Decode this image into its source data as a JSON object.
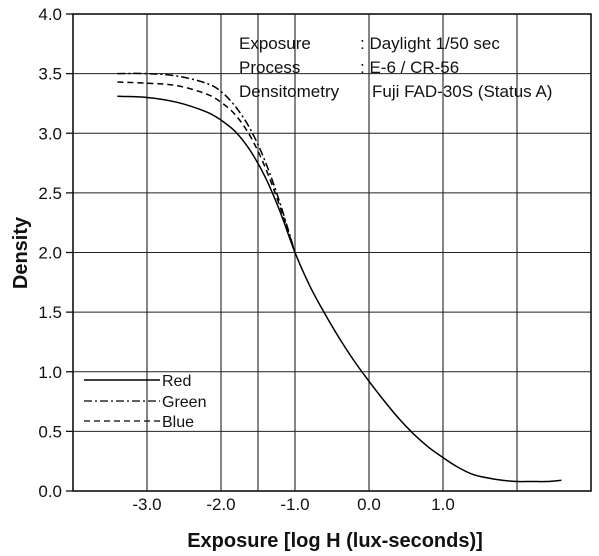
{
  "chart_data": {
    "type": "line",
    "xlabel": "Exposure [log H (lux-seconds)]",
    "ylabel": "Density",
    "xlim": [
      -4.0,
      3.0
    ],
    "ylim": [
      0.0,
      4.0
    ],
    "x_ticks": [
      -3.0,
      -2.0,
      -1.0,
      0.0,
      1.0
    ],
    "x_tick_labels": [
      "-3.0",
      "-2.0",
      "-1.0",
      "0.0",
      "1.0"
    ],
    "x_gridlines": [
      -3.0,
      -2.0,
      -1.5,
      -1.0,
      0.0,
      1.0,
      2.0
    ],
    "y_ticks": [
      0.0,
      0.5,
      1.0,
      1.5,
      2.0,
      2.5,
      3.0,
      3.5,
      4.0
    ],
    "y_tick_labels": [
      "0.0",
      "0.5",
      "1.0",
      "1.5",
      "2.0",
      "2.5",
      "3.0",
      "3.5",
      "4.0"
    ],
    "grid": true,
    "legend_position": "bottom-left",
    "annotations": [
      {
        "key": "Exposure",
        "value": ": Daylight 1/50 sec"
      },
      {
        "key": "Process",
        "value": ": E-6 / CR-56"
      },
      {
        "key": "Densitometry",
        "value": "Fuji FAD-30S (Status A)"
      }
    ],
    "series": [
      {
        "name": "Red",
        "style": "solid",
        "x": [
          -3.4,
          -3.0,
          -2.6,
          -2.2,
          -2.0,
          -1.8,
          -1.6,
          -1.4,
          -1.2,
          -1.0,
          -0.8,
          -0.6,
          -0.4,
          -0.2,
          0.0,
          0.2,
          0.4,
          0.6,
          0.8,
          1.0,
          1.2,
          1.4,
          1.6,
          1.8,
          2.0,
          2.2,
          2.4,
          2.6
        ],
        "y": [
          3.31,
          3.3,
          3.26,
          3.18,
          3.11,
          3.01,
          2.85,
          2.63,
          2.34,
          2.0,
          1.72,
          1.49,
          1.28,
          1.09,
          0.92,
          0.76,
          0.61,
          0.48,
          0.37,
          0.28,
          0.2,
          0.14,
          0.11,
          0.09,
          0.08,
          0.08,
          0.08,
          0.09
        ]
      },
      {
        "name": "Green",
        "style": "dash-dot",
        "x": [
          -3.4,
          -3.0,
          -2.6,
          -2.2,
          -2.0,
          -1.8,
          -1.6,
          -1.4,
          -1.2,
          -1.0
        ],
        "y": [
          3.5,
          3.5,
          3.48,
          3.42,
          3.35,
          3.22,
          3.03,
          2.76,
          2.41,
          2.0
        ]
      },
      {
        "name": "Blue",
        "style": "dashed",
        "x": [
          -3.4,
          -3.0,
          -2.6,
          -2.2,
          -2.0,
          -1.8,
          -1.6,
          -1.4,
          -1.2,
          -1.0
        ],
        "y": [
          3.43,
          3.42,
          3.4,
          3.33,
          3.26,
          3.15,
          2.97,
          2.71,
          2.38,
          2.0
        ]
      }
    ],
    "colors": {
      "line": "#000000",
      "grid": "#222222",
      "background": "#ffffff"
    }
  }
}
